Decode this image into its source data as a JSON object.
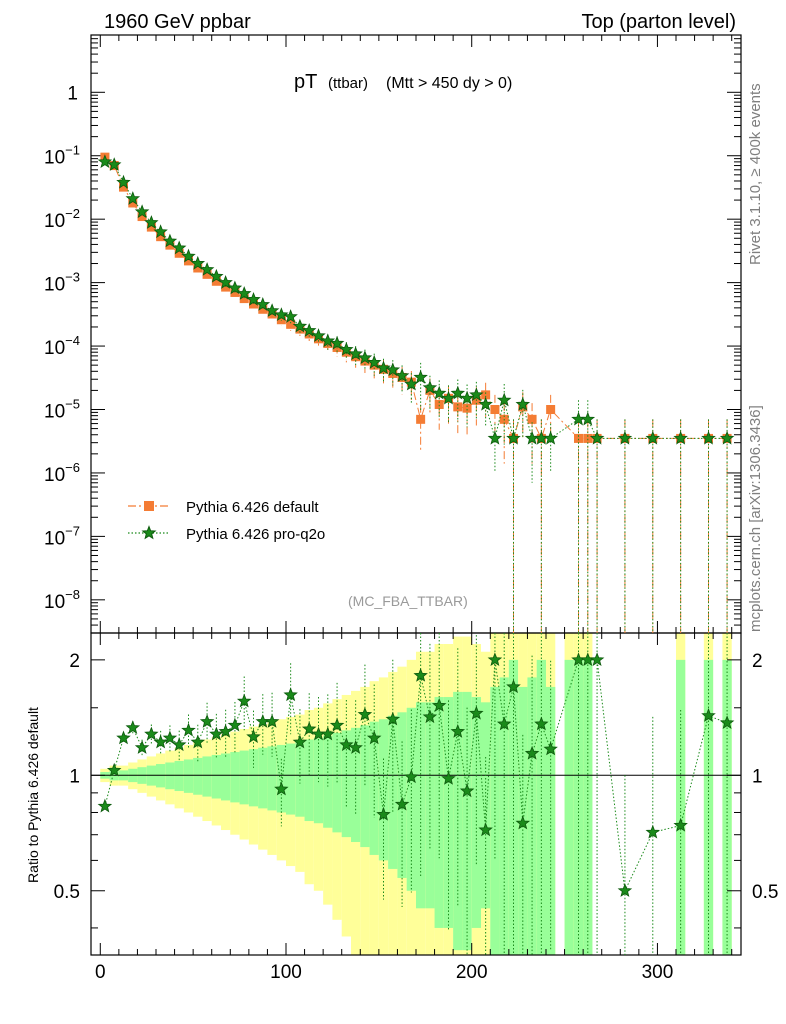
{
  "header": {
    "left": "1960 GeV ppbar",
    "right": "Top (parton level)"
  },
  "side": {
    "rivet": "Rivet 3.1.10, ≥ 400k events",
    "mcplots": "mcplots.cern.ch [arXiv:1306.3436]"
  },
  "chart_data": {
    "type": "line",
    "title_main": "pT",
    "title_sub": "(ttbar)",
    "title_cut": "(Mtt > 450 dy > 0)",
    "analysis_tag": "(MC_FBA_TTBAR)",
    "xlim": [
      -5,
      345
    ],
    "ylim_log": [
      3e-09,
      8
    ],
    "ratio_ylim": [
      0.34,
      2.35
    ],
    "ratio_ylabel": "Ratio to Pythia 6.426 default",
    "xticks": [
      0,
      100,
      200,
      300
    ],
    "xtick_labels": [
      "0",
      "100",
      "200",
      "300"
    ],
    "ytick_labels": [
      "1",
      "10−1",
      "10−2",
      "10−3",
      "10−4",
      "10−5",
      "10−6",
      "10−7",
      "10−8"
    ],
    "ratio_ytick_labels": [
      "0.5",
      "1",
      "2"
    ],
    "ratio_ytick_labels_right": [
      "0.5",
      "1",
      "2"
    ],
    "series": [
      {
        "name": "Pythia 6.426 default",
        "color": "#f47c34",
        "marker": "square",
        "x": [
          2.5,
          7.5,
          12.5,
          17.5,
          22.5,
          27.5,
          32.5,
          37.5,
          42.5,
          47.5,
          52.5,
          57.5,
          62.5,
          67.5,
          72.5,
          77.5,
          82.5,
          87.5,
          92.5,
          97.5,
          102.5,
          107.5,
          112.5,
          117.5,
          122.5,
          127.5,
          132.5,
          137.5,
          142.5,
          147.5,
          152.5,
          157.5,
          162.5,
          167.5,
          172.5,
          177.5,
          182.5,
          187.5,
          192.5,
          197.5,
          202.5,
          207.5,
          212.5,
          217.5,
          222.5,
          227.5,
          232.5,
          237.5,
          242.5,
          257.5,
          262.5,
          267.5,
          282.5,
          297.5,
          312.5,
          327.5,
          337.5
        ],
        "y": [
          0.095,
          0.07,
          0.032,
          0.018,
          0.011,
          0.0075,
          0.0053,
          0.0039,
          0.0029,
          0.0022,
          0.0017,
          0.00135,
          0.00105,
          0.00085,
          0.0007,
          0.00056,
          0.00046,
          0.00038,
          0.00032,
          0.00026,
          0.00022,
          0.000185,
          0.000155,
          0.00013,
          0.00011,
          9.5e-05,
          8e-05,
          6.8e-05,
          5.8e-05,
          5e-05,
          4.3e-05,
          3.7e-05,
          3.2e-05,
          2.7e-05,
          7e-06,
          2e-05,
          1.2e-05,
          1.5e-05,
          1.1e-05,
          1.05e-05,
          1.4e-05,
          1.7e-05,
          1e-05,
          7e-06,
          3.5e-06,
          1.1e-05,
          7e-06,
          3.5e-06,
          1e-05,
          3.5e-06,
          3.5e-06,
          3.5e-06,
          3.5e-06,
          3.5e-06,
          3.5e-06,
          3.5e-06,
          3.5e-06
        ],
        "rel_err": [
          0.02,
          0.03,
          0.03,
          0.04,
          0.05,
          0.06,
          0.07,
          0.08,
          0.09,
          0.1,
          0.11,
          0.12,
          0.13,
          0.14,
          0.15,
          0.16,
          0.17,
          0.18,
          0.19,
          0.2,
          0.21,
          0.22,
          0.24,
          0.25,
          0.27,
          0.29,
          0.31,
          0.33,
          0.35,
          0.38,
          0.4,
          0.43,
          0.46,
          0.5,
          0.7,
          0.55,
          0.6,
          0.6,
          0.65,
          0.65,
          0.6,
          0.55,
          0.7,
          0.8,
          1.0,
          0.7,
          0.8,
          1.0,
          0.7,
          1.0,
          1.0,
          1.0,
          1.0,
          1.0,
          1.0,
          1.0,
          1.0
        ]
      },
      {
        "name": "Pythia 6.426 pro-q2o",
        "color": "#1a8a1a",
        "marker": "star",
        "x": [
          2.5,
          7.5,
          12.5,
          17.5,
          22.5,
          27.5,
          32.5,
          37.5,
          42.5,
          47.5,
          52.5,
          57.5,
          62.5,
          67.5,
          72.5,
          77.5,
          82.5,
          87.5,
          92.5,
          97.5,
          102.5,
          107.5,
          112.5,
          117.5,
          122.5,
          127.5,
          132.5,
          137.5,
          142.5,
          147.5,
          152.5,
          157.5,
          162.5,
          167.5,
          172.5,
          177.5,
          182.5,
          187.5,
          192.5,
          197.5,
          202.5,
          207.5,
          212.5,
          217.5,
          222.5,
          227.5,
          232.5,
          237.5,
          242.5,
          257.5,
          262.5,
          267.5,
          282.5,
          297.5,
          312.5,
          327.5,
          337.5
        ],
        "y": [
          0.08,
          0.072,
          0.038,
          0.021,
          0.013,
          0.0088,
          0.0063,
          0.0045,
          0.0035,
          0.0026,
          0.002,
          0.0016,
          0.00125,
          0.001,
          0.00082,
          0.00067,
          0.00054,
          0.00045,
          0.00036,
          0.00031,
          0.00029,
          0.000205,
          0.000175,
          0.000145,
          0.00012,
          0.00011,
          8.8e-05,
          7.5e-05,
          6.5e-05,
          5.5e-05,
          4.5e-05,
          4.2e-05,
          3.4e-05,
          2.5e-05,
          3.2e-05,
          2.2e-05,
          1.8e-05,
          1.5e-05,
          1.8e-05,
          1.5e-05,
          1.7e-05,
          1.2e-05,
          3.5e-06,
          1.4e-05,
          3.5e-06,
          1.2e-05,
          3.5e-06,
          3.5e-06,
          3.5e-06,
          7e-06,
          7e-06,
          3.5e-06,
          3.5e-06,
          3.5e-06,
          3.5e-06,
          3.5e-06,
          3.5e-06
        ],
        "ratio": [
          0.83,
          1.03,
          1.25,
          1.33,
          1.18,
          1.28,
          1.22,
          1.25,
          1.2,
          1.31,
          1.22,
          1.38,
          1.28,
          1.3,
          1.35,
          1.56,
          1.26,
          1.38,
          1.38,
          0.92,
          1.62,
          1.22,
          1.32,
          1.28,
          1.28,
          1.35,
          1.2,
          1.18,
          1.44,
          1.25,
          0.79,
          1.4,
          0.84,
          0.99,
          1.82,
          1.42,
          1.52,
          0.98,
          1.3,
          0.91,
          1.45,
          0.72,
          2.0,
          1.36,
          1.7,
          0.75,
          1.14,
          1.36,
          1.17,
          2.0,
          2.0,
          2.0,
          0.5,
          0.71,
          0.74,
          1.43,
          1.37
        ]
      }
    ],
    "ratio_band_edges": [
      0,
      5,
      10,
      15,
      20,
      25,
      30,
      35,
      40,
      45,
      50,
      55,
      60,
      65,
      70,
      75,
      80,
      85,
      90,
      95,
      100,
      105,
      110,
      115,
      120,
      125,
      130,
      135,
      140,
      145,
      150,
      155,
      160,
      165,
      170,
      175,
      180,
      185,
      190,
      195,
      200,
      205,
      210,
      215,
      220,
      225,
      230,
      235,
      240,
      245,
      250,
      255,
      260,
      265,
      270,
      275,
      280,
      285,
      290,
      295,
      300,
      305,
      310,
      315,
      320,
      325,
      330,
      335,
      340
    ],
    "ratio_band_rel": [
      0.02,
      0.03,
      0.03,
      0.04,
      0.05,
      0.06,
      0.07,
      0.08,
      0.09,
      0.1,
      0.11,
      0.12,
      0.13,
      0.14,
      0.15,
      0.16,
      0.17,
      0.18,
      0.19,
      0.2,
      0.21,
      0.22,
      0.24,
      0.25,
      0.27,
      0.29,
      0.31,
      0.33,
      0.35,
      0.38,
      0.4,
      0.43,
      0.46,
      0.5,
      0.55,
      0.55,
      0.6,
      0.6,
      0.65,
      0.65,
      0.6,
      0.55,
      0.7,
      0.8,
      1.0,
      0.7,
      0.8,
      1.0,
      0.7,
      0,
      1.0,
      1.0,
      1.0,
      0,
      0,
      0,
      0,
      0,
      0,
      0,
      0,
      0,
      1.0,
      0,
      0,
      1.0,
      0,
      1.0
    ]
  }
}
